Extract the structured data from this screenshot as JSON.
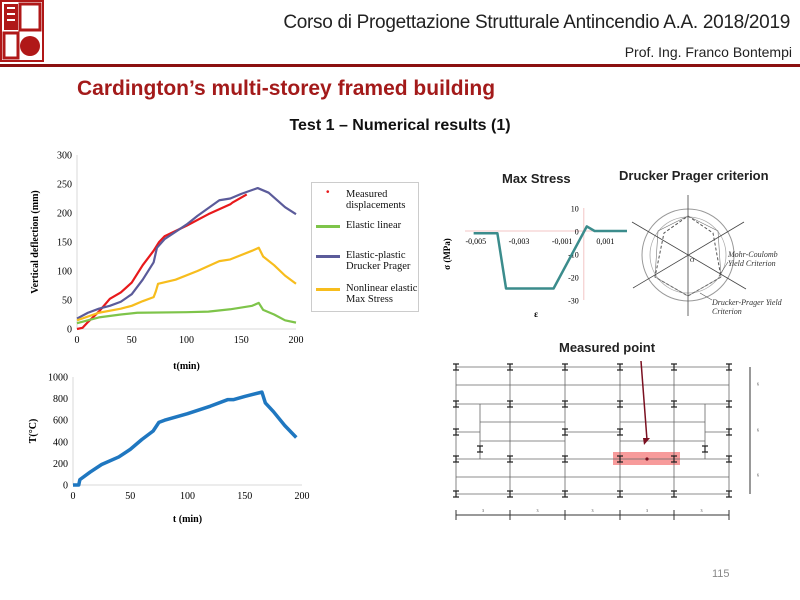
{
  "header": {
    "course": "Corso di Progettazione Strutturale Antincendio A.A. 2018/2019",
    "professor": "Prof. Ing. Franco Bontempi",
    "logo_text": "seal"
  },
  "slide": {
    "title": "Cardington’s multi-storey framed building",
    "subtitle": "Test 1 – Numerical results (1)",
    "page_number": "115"
  },
  "colors": {
    "brand": "#a31a1a",
    "measured": "#e8191b",
    "elastic_linear": "#7ec44a",
    "drucker_prager": "#5b5b9a",
    "max_stress": "#f7bd1d",
    "temperature": "#1f77c0",
    "max_stress_line": "#3b8c8c",
    "highlight": "#f47a7a"
  },
  "diagrams": {
    "max_stress_title": "Max Stress",
    "drucker_title": "Drucker Prager criterion",
    "drucker_labels": {
      "mohr": "Mohr-Coulomb Yield Criterion",
      "dp": "Drucker-Prager Yield Criterion",
      "origin": "O"
    },
    "frame_title": "Measured point",
    "frame_dims": [
      "3",
      "3",
      "3",
      "3",
      "3",
      "6",
      "6",
      "6"
    ]
  },
  "chart_data": [
    {
      "type": "line",
      "title": "",
      "xlabel": "t(min)",
      "ylabel": "Vertical deflection (mm)",
      "xlim": [
        0,
        200
      ],
      "ylim": [
        0,
        300
      ],
      "xticks": [
        0,
        50,
        100,
        150,
        200
      ],
      "yticks": [
        0,
        50,
        100,
        150,
        200,
        250,
        300
      ],
      "legend": "right",
      "grid": false,
      "series": [
        {
          "name": "Measured displacements",
          "color": "#e8191b",
          "x": [
            0,
            5,
            10,
            20,
            30,
            40,
            50,
            60,
            70,
            75,
            80,
            100,
            120,
            140,
            142,
            155
          ],
          "y": [
            0,
            2,
            12,
            30,
            52,
            63,
            80,
            110,
            135,
            150,
            160,
            178,
            198,
            215,
            218,
            232
          ]
        },
        {
          "name": "Elastic linear",
          "color": "#7ec44a",
          "x": [
            0,
            20,
            40,
            55,
            100,
            120,
            140,
            160,
            166,
            170,
            180,
            190,
            200
          ],
          "y": [
            10,
            20,
            25,
            28,
            29,
            30,
            34,
            40,
            45,
            33,
            25,
            15,
            11
          ]
        },
        {
          "name": "Elastic-plastic Drucker Prager",
          "color": "#5b5b9a",
          "x": [
            0,
            10,
            20,
            30,
            40,
            50,
            60,
            70,
            73,
            80,
            100,
            110,
            130,
            140,
            150,
            165,
            175,
            190,
            200
          ],
          "y": [
            18,
            28,
            35,
            40,
            47,
            60,
            85,
            115,
            140,
            155,
            180,
            195,
            222,
            225,
            233,
            243,
            235,
            210,
            198
          ]
        },
        {
          "name": "Nonlinear elastic Max Stress",
          "color": "#f7bd1d",
          "x": [
            0,
            20,
            40,
            50,
            60,
            70,
            72,
            74,
            90,
            110,
            130,
            140,
            160,
            166,
            170,
            180,
            190,
            200
          ],
          "y": [
            15,
            28,
            35,
            40,
            48,
            55,
            65,
            78,
            85,
            100,
            117,
            120,
            135,
            140,
            125,
            110,
            92,
            78
          ]
        }
      ]
    },
    {
      "type": "line",
      "title": "",
      "xlabel": "t (min)",
      "ylabel": "T(°C)",
      "xlim": [
        0,
        200
      ],
      "ylim": [
        0,
        1000
      ],
      "xticks": [
        0,
        50,
        100,
        150,
        200
      ],
      "yticks": [
        0,
        200,
        400,
        600,
        800,
        1000
      ],
      "grid": false,
      "series": [
        {
          "name": "Temperature",
          "color": "#1f77c0",
          "x": [
            0,
            5,
            6,
            15,
            25,
            40,
            50,
            60,
            70,
            75,
            80,
            100,
            120,
            135,
            140,
            150,
            165,
            168,
            175,
            185,
            195
          ],
          "y": [
            0,
            0,
            50,
            120,
            190,
            260,
            330,
            420,
            500,
            580,
            600,
            660,
            730,
            790,
            790,
            820,
            860,
            760,
            680,
            550,
            440
          ]
        }
      ]
    },
    {
      "type": "line",
      "title": "Max Stress",
      "xlabel": "ε",
      "ylabel": "σ (MPa)",
      "xlim": [
        -0.0055,
        0.002
      ],
      "ylim": [
        -30,
        10
      ],
      "xticks": [
        "-0,005",
        "-0,003",
        "-0,001",
        "0,001"
      ],
      "xtick_values": [
        -0.005,
        -0.003,
        -0.001,
        0.001
      ],
      "yticks": [
        10,
        0,
        -10,
        -20,
        -30
      ],
      "series": [
        {
          "name": "Max Stress",
          "color": "#3b8c8c",
          "x": [
            -0.0051,
            -0.004,
            -0.0036,
            -0.0014,
            0.00014,
            0.0005,
            0.002
          ],
          "y": [
            -1,
            -1,
            -25,
            -25,
            2,
            0,
            0
          ]
        }
      ]
    }
  ]
}
